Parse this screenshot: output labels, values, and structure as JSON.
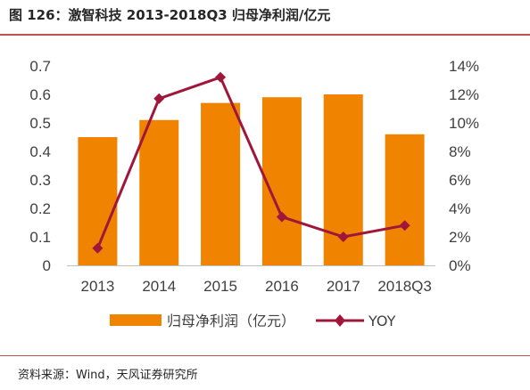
{
  "header": {
    "title": "图 126：激智科技  2013-2018Q3 归母净利润/亿元"
  },
  "footer": {
    "source": "资料来源：Wind，天风证券研究所"
  },
  "colors": {
    "bar": "#f08300",
    "line": "#a0173b",
    "rule": "#c0504d"
  },
  "chart_data": {
    "type": "bar",
    "categories": [
      "2013",
      "2014",
      "2015",
      "2016",
      "2017",
      "2018Q3"
    ],
    "series": [
      {
        "name": "归母净利润（亿元）",
        "type": "bar",
        "axis": "left",
        "values": [
          0.45,
          0.51,
          0.57,
          0.59,
          0.6,
          0.46
        ]
      },
      {
        "name": "YOY",
        "type": "line",
        "axis": "right",
        "marker": "diamond",
        "values": [
          1.2,
          11.7,
          13.2,
          3.4,
          2.0,
          2.8
        ]
      }
    ],
    "y_left": {
      "min": 0,
      "max": 0.7,
      "tick_labels": [
        "0",
        "0.1",
        "0.2",
        "0.3",
        "0.4",
        "0.5",
        "0.6",
        "0.7"
      ]
    },
    "y_right": {
      "min": 0,
      "max": 14,
      "unit": "%",
      "tick_labels": [
        "0%",
        "2%",
        "4%",
        "6%",
        "8%",
        "10%",
        "12%",
        "14%"
      ]
    },
    "grid": false,
    "legend_position": "bottom"
  }
}
